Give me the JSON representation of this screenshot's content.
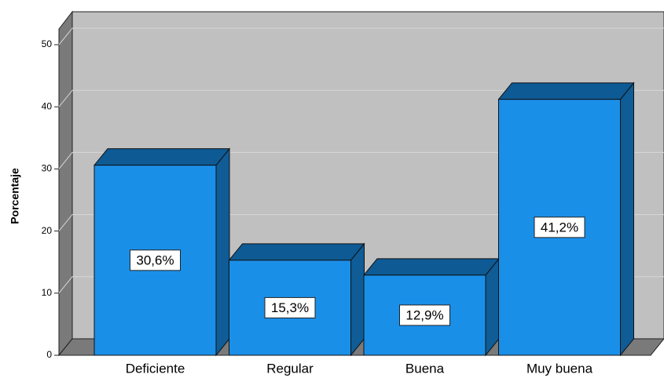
{
  "chart_data": {
    "type": "bar3d",
    "y_label": "Porcentaje",
    "categories": [
      "Deficiente",
      "Regular",
      "Buena",
      "Muy buena"
    ],
    "values": [
      30.6,
      15.3,
      12.9,
      41.2
    ],
    "value_labels": [
      "30,6%",
      "15,3%",
      "12,9%",
      "41,2%"
    ],
    "color": "#1a8fe8",
    "ylim": [
      0,
      50
    ],
    "yticks": [
      0,
      10,
      20,
      30,
      40,
      50
    ],
    "grid": true
  }
}
